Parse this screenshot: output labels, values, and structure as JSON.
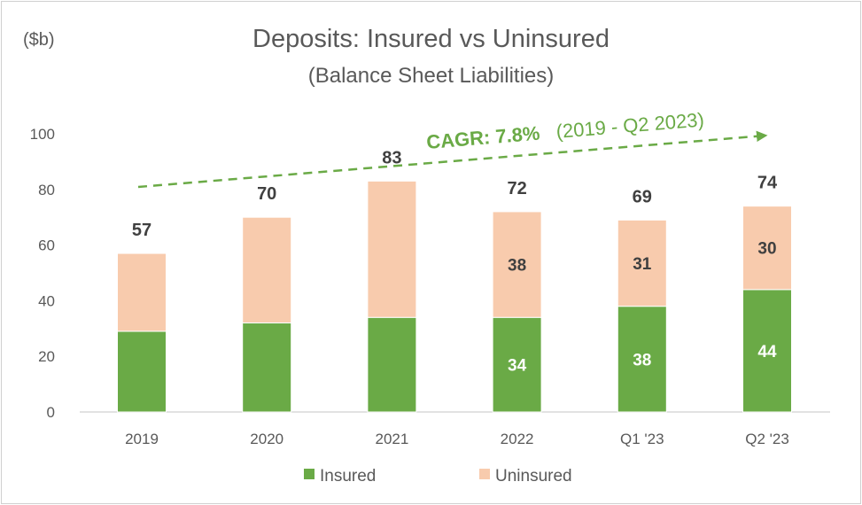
{
  "chart_data": {
    "type": "bar",
    "stacked": true,
    "unit_label": "($b)",
    "title": "Deposits: Insured vs Uninsured",
    "subtitle": "(Balance Sheet Liabilities)",
    "categories": [
      "2019",
      "2020",
      "2021",
      "2022",
      "Q1 '23",
      "Q2 '23"
    ],
    "series": [
      {
        "name": "Insured",
        "color": "#6aaa46",
        "values": [
          29,
          32,
          34,
          34,
          38,
          44
        ],
        "labels": [
          "",
          "",
          "",
          "34",
          "38",
          "44"
        ]
      },
      {
        "name": "Uninsured",
        "color": "#f8cbad",
        "values": [
          28,
          38,
          49,
          38,
          31,
          30
        ],
        "labels": [
          "",
          "",
          "",
          "38",
          "31",
          "30"
        ]
      }
    ],
    "totals": [
      "57",
      "70",
      "83",
      "72",
      "69",
      "74"
    ],
    "ylim": [
      0,
      100
    ],
    "yticks": [
      "0",
      "20",
      "40",
      "60",
      "80",
      "100"
    ],
    "grid": false,
    "legend_position": "bottom",
    "annotation": {
      "main": "CAGR: 7.8%",
      "sub": "(2019 - Q2 2023)",
      "color": "#6aaa46"
    }
  }
}
